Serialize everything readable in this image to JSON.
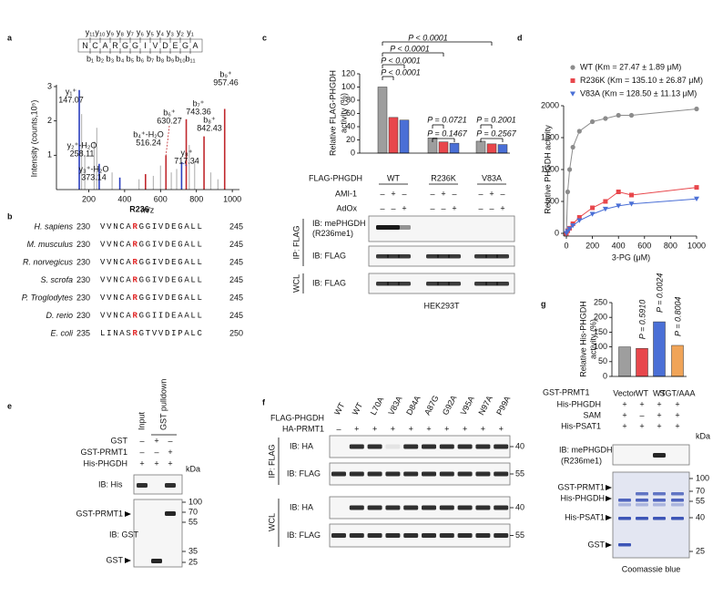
{
  "panel_labels": [
    "a",
    "b",
    "c",
    "d",
    "e",
    "f",
    "g"
  ],
  "chart_data": [
    {
      "type": "stem",
      "xlabel": "m/z",
      "ylabel": "Intensity (counts,10⁵)",
      "xlim": [
        20,
        1040
      ],
      "xticks": [
        200,
        400,
        600,
        800,
        1000
      ],
      "ylim": [
        0,
        3
      ],
      "yticks": [
        1,
        2,
        3
      ],
      "peptide": {
        "residues": [
          "N",
          "C",
          "A",
          "R",
          "G",
          "G",
          "I",
          "V",
          "D",
          "E",
          "G",
          "A"
        ],
        "y_ions": [
          "y₁₁",
          "y₁₀",
          "y₉",
          "y₈",
          "y₇",
          "y₆",
          "y₅",
          "y₄",
          "y₃",
          "y₂",
          "y₁"
        ],
        "b_ions": [
          "b₁",
          "b₂",
          "b₃",
          "b₄",
          "b₅",
          "b₆",
          "b₇",
          "b₈",
          "b₉",
          "b₁₀",
          "b₁₁"
        ]
      },
      "peaks": [
        {
          "ion": "y₁⁺",
          "x": 147.07,
          "y": 2.9,
          "color": "#2b3fbf"
        },
        {
          "ion": "y₂⁺-H₂O",
          "x": 258.11,
          "y": 0.75,
          "color": "#2b3fbf"
        },
        {
          "ion": "y₃⁺-H₂O",
          "x": 373.14,
          "y": 0.35,
          "color": "#2b3fbf"
        },
        {
          "ion": "b₄⁺-H₂O",
          "x": 516.24,
          "y": 0.45,
          "color": "#c0282d"
        },
        {
          "ion": "b₆⁺",
          "x": 630.27,
          "y": 1.0,
          "color": "#c0282d"
        },
        {
          "ion": "b₇⁺",
          "x": 743.36,
          "y": 2.05,
          "color": "#c0282d"
        },
        {
          "ion": "y₈⁺",
          "x": 717.34,
          "y": 0.8,
          "color": "#2b3fbf"
        },
        {
          "ion": "b₈⁺",
          "x": 842.43,
          "y": 1.55,
          "color": "#c0282d"
        },
        {
          "ion": "b₉⁺",
          "x": 957.46,
          "y": 2.35,
          "color": "#c0282d"
        }
      ],
      "other_peaks": {
        "color": "#b8b8b8",
        "x": [
          160,
          178,
          230,
          245,
          330,
          480,
          560,
          600,
          660,
          690,
          760,
          790,
          880,
          920
        ],
        "y": [
          2.2,
          1.0,
          1.4,
          1.8,
          0.5,
          0.3,
          0.4,
          0.7,
          0.5,
          0.6,
          1.3,
          0.8,
          0.5,
          0.3
        ]
      }
    },
    {
      "type": "grouped_bar",
      "ylabel": [
        "Relative FLAG-PHGDH",
        "activity (%)"
      ],
      "ylim": [
        0,
        120
      ],
      "yticks": [
        0,
        20,
        40,
        60,
        80,
        100,
        120
      ],
      "category_label": "FLAG-PHGDH",
      "categories": [
        "WT",
        "R236K",
        "V83A"
      ],
      "series": [
        {
          "color": "#9e9e9e",
          "values": [
            100,
            23,
            18
          ]
        },
        {
          "color": "#e8474c",
          "values": [
            54,
            17,
            14
          ]
        },
        {
          "color": "#4a6fd6",
          "values": [
            50,
            15,
            13
          ]
        }
      ],
      "annotations": [
        "P < 0.0001",
        "P < 0.0001",
        "P < 0.0001",
        "P < 0.0001",
        "P = 0.0721",
        "P = 0.1467",
        "P = 0.2001",
        "P = 0.2567"
      ],
      "conditions": [
        {
          "label": "AMI-1",
          "signs": [
            "–",
            "+",
            "–",
            "–",
            "+",
            "–",
            "–",
            "+",
            "–"
          ]
        },
        {
          "label": "AdOx",
          "signs": [
            "–",
            "–",
            "+",
            "–",
            "–",
            "+",
            "–",
            "–",
            "+"
          ]
        }
      ],
      "blots": {
        "rows": [
          [
            "IB: mePHGDH",
            "(R236me1)"
          ],
          [
            "IB: FLAG"
          ],
          [
            "IB: FLAG"
          ]
        ],
        "ip_label": "IP: FLAG",
        "wcl_label": "WCL",
        "cell_line": "HEK293T"
      }
    },
    {
      "type": "line",
      "xlabel": "3-PG (μM)",
      "ylabel": "Relative PHGDH activity",
      "xlim": [
        0,
        1000
      ],
      "xticks": [
        0,
        200,
        400,
        600,
        800,
        1000
      ],
      "ylim": [
        0,
        2000
      ],
      "yticks": [
        0,
        500,
        1000,
        1500,
        2000
      ],
      "legend": "upper left",
      "x": [
        0,
        10,
        25,
        50,
        100,
        200,
        300,
        400,
        500,
        1000
      ],
      "series": [
        {
          "name": "WT (Km = 27.47 ± 1.89 μM)",
          "color": "#8c8c8c",
          "marker": "circle",
          "values": [
            0,
            650,
            1000,
            1350,
            1600,
            1750,
            1800,
            1850,
            1850,
            1950
          ]
        },
        {
          "name": "R236K (Km = 135.10 ± 26.87 μM)",
          "color": "#e8474c",
          "marker": "square",
          "values": [
            0,
            40,
            80,
            150,
            250,
            400,
            500,
            650,
            600,
            720
          ]
        },
        {
          "name": "V83A (Km = 128.50 ± 11.13 μM)",
          "color": "#4a6fd6",
          "marker": "triangle",
          "values": [
            0,
            30,
            70,
            120,
            200,
            300,
            380,
            430,
            460,
            540
          ]
        }
      ]
    },
    {
      "type": "bar",
      "ylabel": [
        "Relative His-PHGDH",
        "activity (%)"
      ],
      "ylim": [
        0,
        250
      ],
      "yticks": [
        0,
        50,
        100,
        150,
        200,
        250
      ],
      "category_label": "GST-PRMT1",
      "categories": [
        "Vector",
        "WT",
        "WT",
        "SGT/AAA"
      ],
      "values": [
        100,
        95,
        185,
        105
      ],
      "colors": [
        "#9e9e9e",
        "#e8474c",
        "#4a6fd6",
        "#f0a458"
      ],
      "annotations": [
        null,
        "P = 0.5910",
        "P = 0.0024",
        "P = 0.8004"
      ],
      "conditions": [
        {
          "label": "His-PHGDH",
          "signs": [
            "+",
            "+",
            "+",
            "+"
          ]
        },
        {
          "label": "SAM",
          "signs": [
            "+",
            "–",
            "+",
            "+"
          ]
        },
        {
          "label": "His-PSAT1",
          "signs": [
            "+",
            "+",
            "+",
            "+"
          ]
        }
      ],
      "unit": "kDa",
      "blot_label": [
        "IB: mePHGDH",
        "(R236me1)"
      ],
      "gel_labels": [
        "GST-PRMT1",
        "His-PHGDH",
        "His-PSAT1",
        "GST"
      ],
      "markers": [
        100,
        70,
        55,
        40,
        25
      ],
      "gel_title": "Coomassie blue"
    }
  ],
  "alignment": {
    "highlight_label": "R236",
    "rows": [
      {
        "species": "H. sapiens",
        "start": 230,
        "pre": "VVNCA",
        "site": "R",
        "post": "GGIVDEGALL",
        "end": 245
      },
      {
        "species": "M. musculus",
        "start": 230,
        "pre": "VVNCA",
        "site": "R",
        "post": "GGIVDEGALL",
        "end": 245
      },
      {
        "species": "R. norvegicus",
        "start": 230,
        "pre": "VVNCA",
        "site": "R",
        "post": "GGIVDEGALL",
        "end": 245
      },
      {
        "species": "S. scrofa",
        "start": 230,
        "pre": "VVNCA",
        "site": "R",
        "post": "GGIVDEGALL",
        "end": 245
      },
      {
        "species": "P. Troglodytes",
        "start": 230,
        "pre": "VVNCA",
        "site": "R",
        "post": "GGIVDEGALL",
        "end": 245
      },
      {
        "species": "D. rerio",
        "start": 230,
        "pre": "VVNCA",
        "site": "R",
        "post": "GGIIDEAALL",
        "end": 245
      },
      {
        "species": "E. coli",
        "start": 235,
        "pre": "LINAS",
        "site": "R",
        "post": "GTVVDIPALC",
        "end": 250
      }
    ]
  },
  "pulldown": {
    "columns": [
      "Input",
      "GST pulldown"
    ],
    "rows": [
      {
        "label": "GST",
        "signs": [
          "–",
          "+",
          "–"
        ]
      },
      {
        "label": "GST-PRMT1",
        "signs": [
          "–",
          "–",
          "+"
        ]
      },
      {
        "label": "His-PHGDH",
        "signs": [
          "+",
          "+",
          "+"
        ]
      }
    ],
    "unit": "kDa",
    "his_label": "IB: His",
    "gst_label": "IB: GST",
    "band_labels": [
      "GST-PRMT1",
      "GST"
    ],
    "markers": [
      100,
      70,
      55,
      35,
      25
    ]
  },
  "mutant_blot": {
    "lane_row_label": "FLAG-PHGDH",
    "lanes": [
      "WT",
      "WT",
      "L70A",
      "V83A",
      "D84A",
      "A87G",
      "G92A",
      "V95A",
      "N97A",
      "P99A"
    ],
    "sign_row": {
      "label": "HA-PRMT1",
      "signs": [
        "–",
        "+",
        "+",
        "+",
        "+",
        "+",
        "+",
        "+",
        "+",
        "+"
      ]
    },
    "ip_label": "IP: FLAG",
    "wcl_label": "WCL",
    "blot_rows": [
      "IB: HA",
      "IB: FLAG",
      "IB: HA",
      "IB: FLAG"
    ],
    "markers": [
      40,
      55,
      40,
      55
    ]
  }
}
